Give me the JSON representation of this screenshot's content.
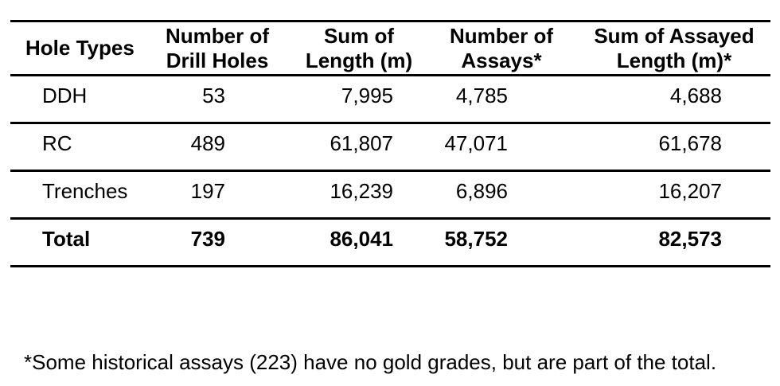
{
  "page": {
    "background_color": "#ffffff",
    "text_color": "#000000",
    "rule_color": "#000000"
  },
  "table": {
    "headers": [
      "Hole Types",
      "Number of\nDrill Holes",
      "Sum of\nLength (m)",
      "Number of\nAssays*",
      "Sum of Assayed\nLength (m)*"
    ],
    "rows": [
      {
        "hole_type": "DDH",
        "drill_holes": "53",
        "sum_length_m": "7,995",
        "assays": "4,785",
        "assayed_length_m": "4,688"
      },
      {
        "hole_type": "RC",
        "drill_holes": "489",
        "sum_length_m": "61,807",
        "assays": "47,071",
        "assayed_length_m": "61,678"
      },
      {
        "hole_type": "Trenches",
        "drill_holes": "197",
        "sum_length_m": "16,239",
        "assays": "6,896",
        "assayed_length_m": "16,207"
      },
      {
        "hole_type": "Total",
        "drill_holes": "739",
        "sum_length_m": "86,041",
        "assays": "58,752",
        "assayed_length_m": "82,573"
      }
    ]
  },
  "footnote": {
    "text": "*Some historical assays (223) have no gold grades, but are part of the total."
  }
}
